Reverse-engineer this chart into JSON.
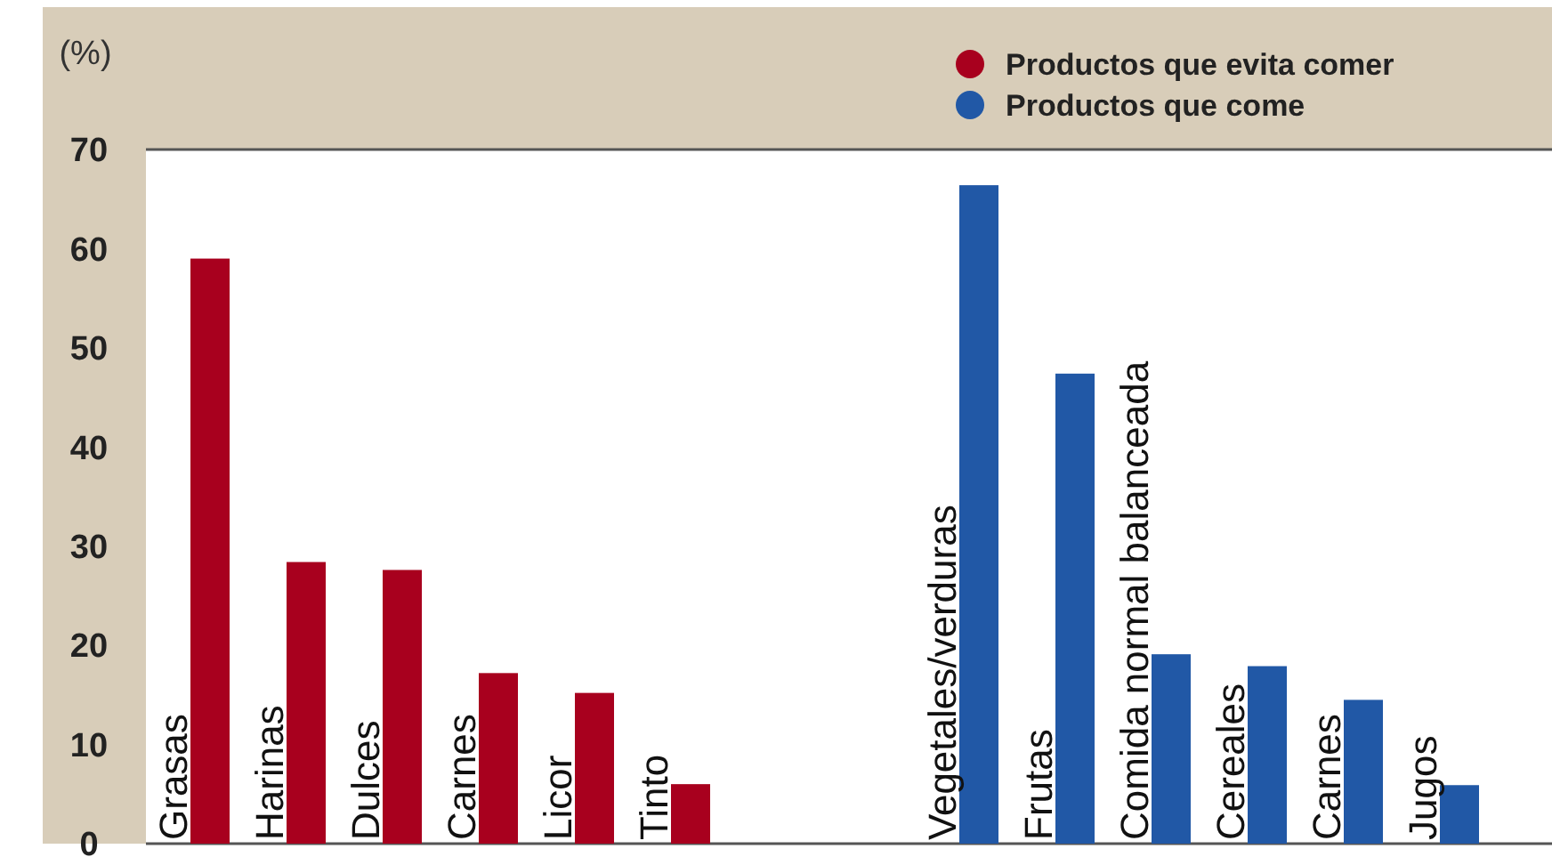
{
  "chart_data": {
    "type": "bar",
    "ylabel": "(%)",
    "categories": [
      "Grasas",
      "Harinas",
      "Dulces",
      "Carnes",
      "Licor",
      "Tinto",
      null,
      null,
      "Vegetales/verduras",
      "Frutas",
      "Comida normal balanceada",
      "Cereales",
      "Carnes",
      "Jugos"
    ],
    "series": [
      {
        "name": "Productos que evita comer",
        "color": "#a8001e",
        "values": [
          59,
          28.4,
          27.6,
          17.2,
          15.2,
          6,
          null,
          null,
          null,
          null,
          null,
          null,
          null,
          null
        ]
      },
      {
        "name": "Productos que come",
        "color": "#2158a6",
        "values": [
          null,
          null,
          null,
          null,
          null,
          null,
          null,
          null,
          66.4,
          47.4,
          19.1,
          17.9,
          14.5,
          5.9
        ]
      }
    ],
    "ylim": [
      0,
      70
    ],
    "yticks": [
      0,
      10,
      20,
      30,
      40,
      50,
      60,
      70
    ],
    "legend": "top right"
  }
}
